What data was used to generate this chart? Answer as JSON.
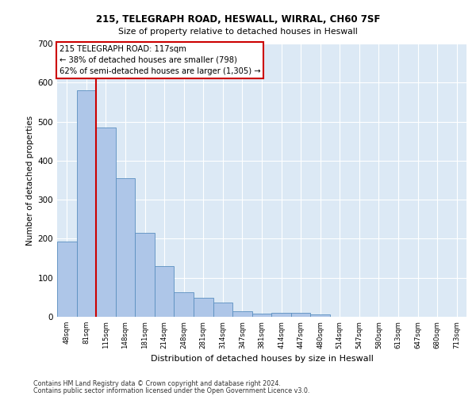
{
  "title1": "215, TELEGRAPH ROAD, HESWALL, WIRRAL, CH60 7SF",
  "title2": "Size of property relative to detached houses in Heswall",
  "xlabel": "Distribution of detached houses by size in Heswall",
  "ylabel": "Number of detached properties",
  "footer1": "Contains HM Land Registry data © Crown copyright and database right 2024.",
  "footer2": "Contains public sector information licensed under the Open Government Licence v3.0.",
  "annotation_line1": "215 TELEGRAPH ROAD: 117sqm",
  "annotation_line2": "← 38% of detached houses are smaller (798)",
  "annotation_line3": "62% of semi-detached houses are larger (1,305) →",
  "bar_color": "#aec6e8",
  "bar_edge_color": "#5a8fc0",
  "vline_color": "#cc0000",
  "annotation_box_edge": "#cc0000",
  "background_color": "#dce9f5",
  "fig_bg_color": "#ffffff",
  "categories": [
    "48sqm",
    "81sqm",
    "115sqm",
    "148sqm",
    "181sqm",
    "214sqm",
    "248sqm",
    "281sqm",
    "314sqm",
    "347sqm",
    "381sqm",
    "414sqm",
    "447sqm",
    "480sqm",
    "514sqm",
    "547sqm",
    "580sqm",
    "613sqm",
    "647sqm",
    "680sqm",
    "713sqm"
  ],
  "values": [
    193,
    580,
    485,
    355,
    215,
    130,
    63,
    48,
    36,
    15,
    9,
    10,
    10,
    6,
    0,
    0,
    0,
    0,
    0,
    0,
    0
  ],
  "ylim": [
    0,
    700
  ],
  "yticks": [
    0,
    100,
    200,
    300,
    400,
    500,
    600,
    700
  ],
  "vline_x_index": 1,
  "figsize": [
    6.0,
    5.0
  ],
  "dpi": 100
}
